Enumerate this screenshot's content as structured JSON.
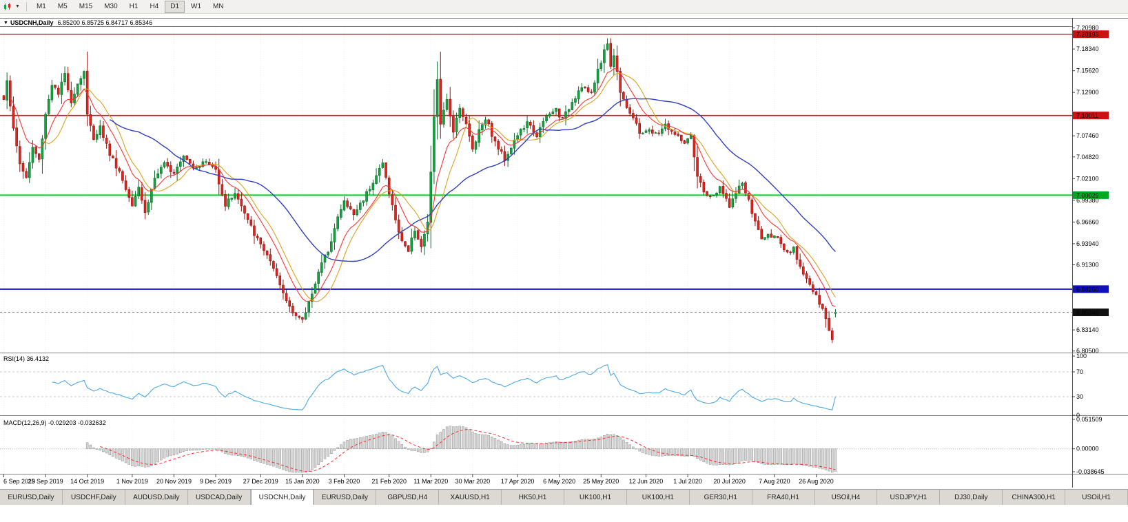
{
  "icons": {
    "dropdown_caret": "▼"
  },
  "toolbar": {
    "timeframes": [
      "M1",
      "M5",
      "M15",
      "M30",
      "H1",
      "H4",
      "D1",
      "W1",
      "MN"
    ],
    "active_timeframe": "D1"
  },
  "chart_window": {
    "title_symbol": "USDCNH,Daily",
    "title_ohlc": "6.85200 6.85725 6.84717 6.85346"
  },
  "indicators": {
    "rsi_label": "RSI(14) 36.4132",
    "macd_label": "MACD(12,26,9) -0.029203 -0.032632"
  },
  "price_axis": {
    "labels": [
      "7.20980",
      "7.18340",
      "7.15620",
      "7.12900",
      "7.07460",
      "7.04820",
      "7.02100",
      "6.99380",
      "6.96660",
      "6.93940",
      "6.91300",
      "6.83140",
      "6.80500"
    ],
    "badges": [
      {
        "text": "7.20193",
        "color": "#cc1111"
      },
      {
        "text": "7.10011",
        "color": "#cc1111"
      },
      {
        "text": "7.00029",
        "color": "#00a81e"
      },
      {
        "text": "6.88250",
        "color": "#1111bb"
      },
      {
        "text": "6.85346",
        "color": "#111111"
      }
    ]
  },
  "rsi_axis": [
    "100",
    "70",
    "30",
    "0"
  ],
  "macd_axis": [
    "0.051509",
    "0.00000",
    "-0.038645"
  ],
  "date_axis": [
    {
      "label": "6 Sep 2019",
      "day": 0
    },
    {
      "label": "25 Sep 2019",
      "day": 13
    },
    {
      "label": "14 Oct 2019",
      "day": 26
    },
    {
      "label": "1 Nov 2019",
      "day": 40
    },
    {
      "label": "20 Nov 2019",
      "day": 53
    },
    {
      "label": "9 Dec 2019",
      "day": 66
    },
    {
      "label": "27 Dec 2019",
      "day": 80
    },
    {
      "label": "15 Jan 2020",
      "day": 93
    },
    {
      "label": "3 Feb 2020",
      "day": 106
    },
    {
      "label": "21 Feb 2020",
      "day": 120
    },
    {
      "label": "11 Mar 2020",
      "day": 133
    },
    {
      "label": "30 Mar 2020",
      "day": 146
    },
    {
      "label": "17 Apr 2020",
      "day": 160
    },
    {
      "label": "6 May 2020",
      "day": 173
    },
    {
      "label": "25 May 2020",
      "day": 186
    },
    {
      "label": "12 Jun 2020",
      "day": 200
    },
    {
      "label": "1 Jul 2020",
      "day": 213
    },
    {
      "label": "20 Jul 2020",
      "day": 226
    },
    {
      "label": "7 Aug 2020",
      "day": 240
    },
    {
      "label": "26 Aug 2020",
      "day": 253
    }
  ],
  "levels": [
    {
      "price": 7.20193,
      "color": "#dd1111",
      "width": 1.4
    },
    {
      "price": 7.10011,
      "color": "#dd1111",
      "width": 1.6
    },
    {
      "price": 7.00029,
      "color": "#00d122",
      "width": 2
    },
    {
      "price": 6.8825,
      "color": "#1414cc",
      "width": 2
    }
  ],
  "current_price": 6.85346,
  "colors": {
    "candle_up": "#13a33f",
    "candle_up_stroke": "#0a6b29",
    "candle_down": "#e3231d",
    "candle_down_stroke": "#8f120e",
    "ma_fast": "#ff3333",
    "ma_mid": "#d9a21b",
    "ma_slow": "#2f3fc2",
    "rsi_line": "#4aa8e8",
    "rsi_level": "#c8c8c8",
    "macd_hist": "#d6d6d6",
    "macd_hist_stroke": "#8f8f8f",
    "macd_signal": "#ff2a2a",
    "separator": "#808080",
    "axis_line": "#555555"
  },
  "chart_data": {
    "type": "candlestick",
    "symbol": "USDCNH",
    "timeframe": "Daily",
    "bars": 260,
    "price_range": [
      6.805,
      7.2098
    ],
    "last_ohlc": {
      "open": 6.852,
      "high": 6.85725,
      "low": 6.84717,
      "close": 6.85346
    },
    "rsi_current": 36.4132,
    "macd_current": [
      -0.029203,
      -0.032632
    ],
    "macd_range": [
      -0.038645,
      0.051509
    ],
    "key_levels": [
      7.20193,
      7.10011,
      7.00029,
      6.8825
    ],
    "anchors": [
      [
        0,
        7.12
      ],
      [
        1,
        7.146
      ],
      [
        3,
        7.082
      ],
      [
        5,
        7.04
      ],
      [
        7,
        7.022
      ],
      [
        9,
        7.06
      ],
      [
        11,
        7.044
      ],
      [
        13,
        7.102
      ],
      [
        15,
        7.14
      ],
      [
        17,
        7.126
      ],
      [
        19,
        7.152
      ],
      [
        21,
        7.118
      ],
      [
        23,
        7.14
      ],
      [
        25,
        7.156
      ],
      [
        26,
        7.1
      ],
      [
        28,
        7.072
      ],
      [
        30,
        7.086
      ],
      [
        33,
        7.052
      ],
      [
        36,
        7.03
      ],
      [
        38,
        7.008
      ],
      [
        40,
        6.99
      ],
      [
        42,
        7.012
      ],
      [
        44,
        6.978
      ],
      [
        47,
        7.022
      ],
      [
        50,
        7.038
      ],
      [
        53,
        7.03
      ],
      [
        56,
        7.052
      ],
      [
        59,
        7.036
      ],
      [
        63,
        7.042
      ],
      [
        66,
        7.032
      ],
      [
        69,
        6.988
      ],
      [
        72,
        7.004
      ],
      [
        76,
        6.968
      ],
      [
        79,
        6.944
      ],
      [
        82,
        6.926
      ],
      [
        85,
        6.896
      ],
      [
        88,
        6.868
      ],
      [
        91,
        6.85
      ],
      [
        93,
        6.842
      ],
      [
        95,
        6.866
      ],
      [
        98,
        6.904
      ],
      [
        101,
        6.932
      ],
      [
        104,
        6.972
      ],
      [
        106,
        6.992
      ],
      [
        109,
        6.976
      ],
      [
        112,
        6.996
      ],
      [
        115,
        7.018
      ],
      [
        118,
        7.04
      ],
      [
        120,
        7.004
      ],
      [
        123,
        6.952
      ],
      [
        126,
        6.93
      ],
      [
        128,
        6.958
      ],
      [
        130,
        6.936
      ],
      [
        132,
        6.964
      ],
      [
        133,
        7.03
      ],
      [
        134,
        7.096
      ],
      [
        135,
        7.146
      ],
      [
        136,
        7.09
      ],
      [
        138,
        7.118
      ],
      [
        140,
        7.082
      ],
      [
        142,
        7.112
      ],
      [
        144,
        7.088
      ],
      [
        146,
        7.058
      ],
      [
        148,
        7.082
      ],
      [
        150,
        7.098
      ],
      [
        153,
        7.066
      ],
      [
        156,
        7.046
      ],
      [
        160,
        7.076
      ],
      [
        163,
        7.09
      ],
      [
        166,
        7.076
      ],
      [
        169,
        7.098
      ],
      [
        172,
        7.108
      ],
      [
        174,
        7.094
      ],
      [
        177,
        7.118
      ],
      [
        180,
        7.138
      ],
      [
        183,
        7.126
      ],
      [
        185,
        7.158
      ],
      [
        187,
        7.18
      ],
      [
        188,
        7.192
      ],
      [
        189,
        7.162
      ],
      [
        190,
        7.176
      ],
      [
        192,
        7.132
      ],
      [
        194,
        7.112
      ],
      [
        196,
        7.096
      ],
      [
        198,
        7.078
      ],
      [
        200,
        7.082
      ],
      [
        203,
        7.076
      ],
      [
        206,
        7.088
      ],
      [
        209,
        7.076
      ],
      [
        212,
        7.066
      ],
      [
        214,
        7.072
      ],
      [
        216,
        7.022
      ],
      [
        218,
        7.006
      ],
      [
        220,
        6.996
      ],
      [
        223,
        7.008
      ],
      [
        226,
        6.988
      ],
      [
        228,
        7.002
      ],
      [
        230,
        7.016
      ],
      [
        232,
        6.992
      ],
      [
        234,
        6.966
      ],
      [
        236,
        6.946
      ],
      [
        240,
        6.952
      ],
      [
        242,
        6.936
      ],
      [
        244,
        6.926
      ],
      [
        246,
        6.932
      ],
      [
        248,
        6.912
      ],
      [
        250,
        6.896
      ],
      [
        253,
        6.872
      ],
      [
        255,
        6.856
      ],
      [
        257,
        6.832
      ],
      [
        258,
        6.82
      ],
      [
        259,
        6.85346
      ]
    ]
  },
  "tabs": {
    "items": [
      "EURUSD,Daily",
      "USDCHF,Daily",
      "AUDUSD,Daily",
      "USDCAD,Daily",
      "USDCNH,Daily",
      "EURUSD,Daily",
      "GBPUSD,H4",
      "XAUUSD,H1",
      "HK50,H1",
      "UK100,H1",
      "UK100,H1",
      "GER30,H1",
      "FRA40,H1",
      "USOil,H4",
      "USDJPY,H1",
      "DJ30,Daily",
      "CHINA300,H1",
      "USOil,H1"
    ],
    "active_index": 4
  }
}
